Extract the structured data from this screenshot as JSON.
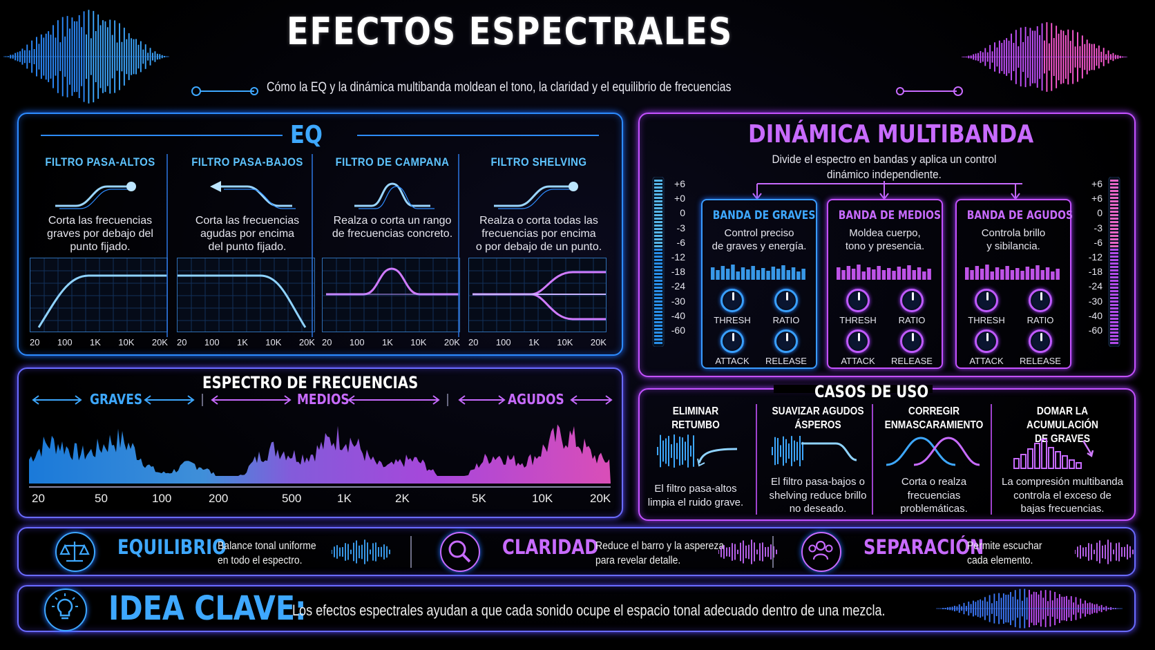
{
  "header": {
    "title": "EFECTOS ESPECTRALES",
    "subtitle": "Cómo la EQ y la dinámica multibanda moldean el tono, la claridad y el equilibrio de frecuencias"
  },
  "eq": {
    "title": "EQ",
    "filters": [
      {
        "title": "FILTRO PASA-ALTOS",
        "desc": [
          "Corta las frecuencias",
          "graves por debajo del",
          "punto fijado."
        ]
      },
      {
        "title": "FILTRO PASA-BAJOS",
        "desc": [
          "Corta las frecuencias",
          "agudas por encima",
          "del punto fijado."
        ]
      },
      {
        "title": "FILTRO DE CAMPANA",
        "desc": [
          "Realza o corta un rango",
          "de frecuencias concreto."
        ]
      },
      {
        "title": "FILTRO SHELVING",
        "desc": [
          "Realza o corta todas las",
          "frecuencias por encima",
          "o por debajo de un punto."
        ]
      }
    ],
    "ticks": [
      "20",
      "100",
      "1K",
      "10K",
      "20K"
    ]
  },
  "multiband": {
    "title": "DINÁMICA MULTIBANDA",
    "desc": [
      "Divide el espectro en bandas y aplica un control",
      "dinámico independiente."
    ],
    "scale_left": [
      "+6",
      "+0",
      "0",
      "-3",
      "-6",
      "-12",
      "-18",
      "-24",
      "-30",
      "-40",
      "-60"
    ],
    "scale_right": [
      "+6",
      "+6",
      "0",
      "-3",
      "-6",
      "-12",
      "-18",
      "-24",
      "-30",
      "-40",
      "-60"
    ],
    "knob_labels": [
      "THRESH",
      "RATIO",
      "ATTACK",
      "RELEASE"
    ],
    "bands": [
      {
        "title": "BANDA DE GRAVES",
        "desc": [
          "Control preciso",
          "de graves y energía."
        ],
        "color": "#3ea8ff"
      },
      {
        "title": "BANDA DE MEDIOS",
        "desc": [
          "Moldea cuerpo,",
          "tono y presencia."
        ],
        "color": "#c86bff"
      },
      {
        "title": "BANDA DE AGUDOS",
        "desc": [
          "Controla brillo",
          "y sibilancia."
        ],
        "color": "#c86bff"
      }
    ]
  },
  "spectrum": {
    "title": "ESPECTRO DE FRECUENCIAS",
    "ranges": [
      "GRAVES",
      "MEDIOS",
      "AGUDOS"
    ],
    "ticks": [
      "20",
      "50",
      "100",
      "200",
      "500",
      "1K",
      "2K",
      "5K",
      "10K",
      "20K"
    ]
  },
  "use_cases": {
    "title": "CASOS DE USO",
    "items": [
      {
        "title": [
          "ELIMINAR",
          "RETUMBO"
        ],
        "desc": [
          "El filtro pasa-altos",
          "limpia el ruido grave."
        ]
      },
      {
        "title": [
          "SUAVIZAR AGUDOS",
          "ÁSPEROS"
        ],
        "desc": [
          "El filtro pasa-bajos o",
          "shelving reduce brillo",
          "no deseado."
        ]
      },
      {
        "title": [
          "CORREGIR",
          "ENMASCARAMIENTO"
        ],
        "desc": [
          "Corta o realza",
          "frecuencias",
          "problemáticas."
        ]
      },
      {
        "title": [
          "DOMAR LA ACUMULACIÓN",
          "DE GRAVES"
        ],
        "desc": [
          "La compresión multibanda",
          "controla el exceso de",
          "bajas frecuencias."
        ]
      }
    ]
  },
  "benefits": [
    {
      "title": "EQUILIBRIO",
      "desc": [
        "Balance tonal uniforme",
        "en todo el espectro."
      ],
      "icon": "scales-icon"
    },
    {
      "title": "CLARIDAD",
      "desc": [
        "Reduce el barro y la aspereza",
        "para revelar detalle."
      ],
      "icon": "magnifier-icon"
    },
    {
      "title": "SEPARACIÓN",
      "desc": [
        "Permite escuchar",
        "cada elemento."
      ],
      "icon": "people-icon"
    }
  ],
  "key_idea": {
    "label": "IDEA CLAVE:",
    "text": "Los efectos espectrales ayudan a que cada sonido ocupe el espacio tonal adecuado dentro de una mezcla."
  }
}
